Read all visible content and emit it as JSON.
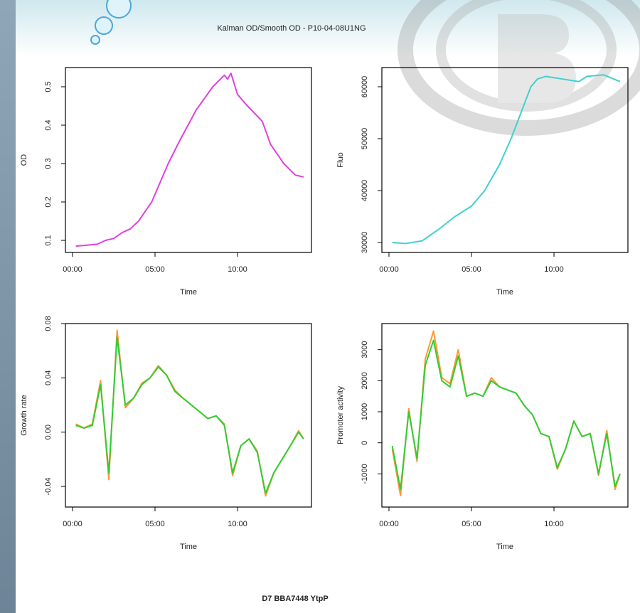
{
  "title": "Kalman OD/Smooth OD - P10-04-08U1NG",
  "caption": "D7 BBA7448 YtpP",
  "chart_data": [
    {
      "type": "line",
      "xlabel": "Time",
      "ylabel": "OD",
      "x": [
        0.2,
        1,
        1.5,
        2,
        2.5,
        3,
        3.5,
        4,
        4.8,
        5.8,
        6.5,
        7.5,
        8.5,
        9.2,
        9.4,
        9.6,
        10,
        10.6,
        11.5,
        12,
        12.8,
        13.5,
        14
      ],
      "series": [
        {
          "color": "#e040e0",
          "values": [
            0.085,
            0.088,
            0.09,
            0.1,
            0.105,
            0.12,
            0.13,
            0.15,
            0.2,
            0.3,
            0.36,
            0.44,
            0.5,
            0.53,
            0.52,
            0.535,
            0.48,
            0.45,
            0.41,
            0.35,
            0.3,
            0.27,
            0.265
          ]
        }
      ],
      "xlim": [
        -0.43,
        14.48
      ],
      "xticks": [
        {
          "value": 0,
          "label": "00:00"
        },
        {
          "value": 5,
          "label": "05:00"
        },
        {
          "value": 10,
          "label": "10:00"
        }
      ],
      "ylim": [
        0.0685,
        0.55
      ],
      "yticks": [
        0.1,
        0.2,
        0.3,
        0.4,
        0.5
      ]
    },
    {
      "type": "line",
      "xlabel": "Time",
      "ylabel": "Fluo",
      "x": [
        0.2,
        1,
        2,
        3,
        4,
        5,
        5.8,
        6.7,
        7.4,
        8,
        8.6,
        9,
        9.5,
        10.5,
        11.5,
        12,
        13,
        14
      ],
      "series": [
        {
          "color": "#40d0d0",
          "values": [
            30000,
            29800,
            30300,
            32500,
            35000,
            37000,
            40000,
            45000,
            50000,
            55000,
            60000,
            61500,
            62000,
            61500,
            61000,
            62000,
            62300,
            61000
          ]
        }
      ],
      "xlim": [
        -0.43,
        14.48
      ],
      "xticks": [
        {
          "value": 0,
          "label": "00:00"
        },
        {
          "value": 5,
          "label": "05:00"
        },
        {
          "value": 10,
          "label": "10:00"
        }
      ],
      "ylim": [
        28080,
        63700
      ],
      "yticks": [
        30000,
        40000,
        50000,
        60000
      ]
    },
    {
      "type": "line",
      "xlabel": "Time",
      "ylabel": "Growth rate",
      "x": [
        0.2,
        0.7,
        1.2,
        1.7,
        2.2,
        2.7,
        3.2,
        3.7,
        4.2,
        4.7,
        5.2,
        5.7,
        6.2,
        6.7,
        7.2,
        7.7,
        8.2,
        8.7,
        9.2,
        9.7,
        10.2,
        10.7,
        11.2,
        11.7,
        12.2,
        12.7,
        13.2,
        13.7,
        14
      ],
      "series": [
        {
          "color": "#ff9933",
          "values": [
            0.006,
            0.003,
            0.006,
            0.038,
            -0.035,
            0.075,
            0.018,
            0.025,
            0.036,
            0.04,
            0.049,
            0.042,
            0.031,
            0.025,
            0.02,
            0.015,
            0.01,
            0.012,
            0.006,
            -0.032,
            -0.01,
            -0.005,
            -0.014,
            -0.047,
            -0.03,
            -0.02,
            -0.01,
            0.001,
            -0.005
          ]
        },
        {
          "color": "#33cc33",
          "values": [
            0.005,
            0.003,
            0.005,
            0.035,
            -0.03,
            0.07,
            0.02,
            0.025,
            0.035,
            0.04,
            0.048,
            0.042,
            0.03,
            0.025,
            0.02,
            0.015,
            0.01,
            0.012,
            0.005,
            -0.03,
            -0.01,
            -0.005,
            -0.015,
            -0.045,
            -0.03,
            -0.02,
            -0.01,
            0.0,
            -0.005
          ]
        }
      ],
      "xlim": [
        -0.43,
        14.48
      ],
      "xticks": [
        {
          "value": 0,
          "label": "00:00"
        },
        {
          "value": 5,
          "label": "05:00"
        },
        {
          "value": 10,
          "label": "10:00"
        }
      ],
      "ylim": [
        -0.0552,
        0.08
      ],
      "yticks": [
        -0.04,
        {
          "value": 0,
          "label": "0.00"
        },
        0.04,
        0.08
      ]
    },
    {
      "type": "line",
      "xlabel": "Time",
      "ylabel": "Promoter activity",
      "x": [
        0.2,
        0.7,
        1.2,
        1.7,
        2.2,
        2.7,
        3.2,
        3.7,
        4.2,
        4.7,
        5.2,
        5.7,
        6.2,
        6.7,
        7.2,
        7.7,
        8.2,
        8.7,
        9.2,
        9.7,
        10.2,
        10.7,
        11.2,
        11.7,
        12.2,
        12.7,
        13.2,
        13.7,
        14
      ],
      "series": [
        {
          "color": "#ff9933",
          "values": [
            -200,
            -1700,
            1100,
            -600,
            2700,
            3600,
            2100,
            1900,
            3000,
            1500,
            1600,
            1500,
            2100,
            1800,
            1700,
            1600,
            1200,
            900,
            300,
            200,
            -850,
            -200,
            700,
            200,
            300,
            -1050,
            400,
            -1500,
            -1000
          ]
        },
        {
          "color": "#33cc33",
          "values": [
            -100,
            -1500,
            1000,
            -500,
            2500,
            3300,
            2000,
            1800,
            2800,
            1500,
            1600,
            1500,
            2000,
            1800,
            1700,
            1600,
            1200,
            900,
            300,
            200,
            -800,
            -200,
            700,
            200,
            300,
            -1000,
            300,
            -1400,
            -1000
          ]
        }
      ],
      "xlim": [
        -0.43,
        14.48
      ],
      "xticks": [
        {
          "value": 0,
          "label": "00:00"
        },
        {
          "value": 5,
          "label": "05:00"
        },
        {
          "value": 10,
          "label": "10:00"
        }
      ],
      "ylim": [
        -2068,
        3840
      ],
      "yticks": [
        -1000,
        0,
        1000,
        2000,
        3000
      ]
    }
  ]
}
